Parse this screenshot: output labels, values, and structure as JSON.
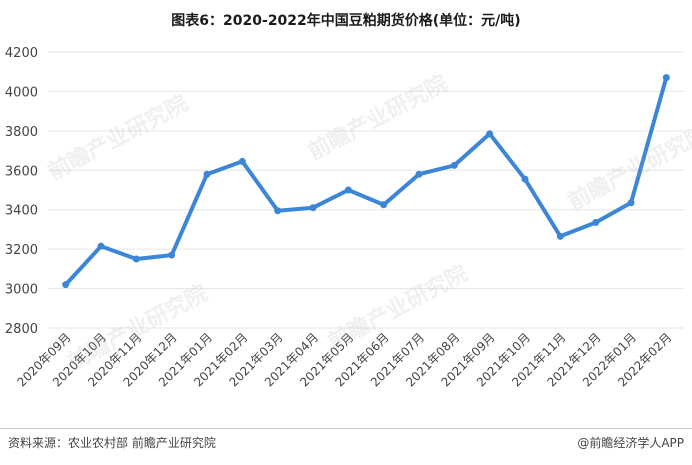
{
  "chart_data": {
    "type": "line",
    "title": "图表6：2020-2022年中国豆粕期货价格(单位：元/吨)",
    "categories": [
      "2020年09月",
      "2020年10月",
      "2020年11月",
      "2020年12月",
      "2021年01月",
      "2021年02月",
      "2021年03月",
      "2021年04月",
      "2021年05月",
      "2021年06月",
      "2021年07月",
      "2021年08月",
      "2021年09月",
      "2021年10月",
      "2021年11月",
      "2021年12月",
      "2022年01月",
      "2022年02月"
    ],
    "values": [
      3020,
      3215,
      3150,
      3170,
      3580,
      3645,
      3395,
      3410,
      3500,
      3425,
      3580,
      3625,
      3785,
      3555,
      3265,
      3335,
      3435,
      4070
    ],
    "ylim": [
      2800,
      4200
    ],
    "yticks": [
      2800,
      3000,
      3200,
      3400,
      3600,
      3800,
      4000,
      4200
    ],
    "color": "#3c86d8"
  },
  "footer": {
    "source": "资料来源：农业农村部 前瞻产业研究院",
    "brand": "@前瞻经济学人APP"
  },
  "watermark": "前瞻产业研究院"
}
